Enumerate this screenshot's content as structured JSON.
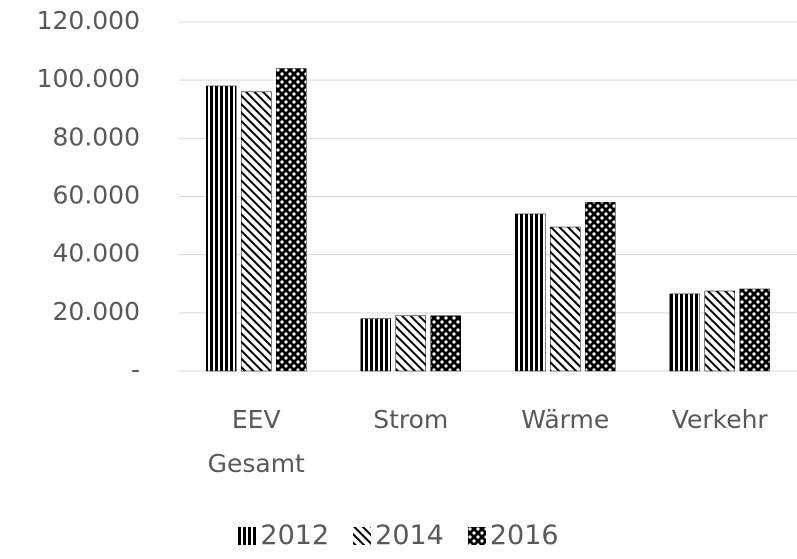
{
  "chart_data": {
    "type": "bar",
    "categories": [
      "EEV Gesamt",
      "Strom",
      "Wärme",
      "Verkehr"
    ],
    "series": [
      {
        "name": "2012",
        "color": "#000000",
        "pattern": "vertical",
        "values": [
          98000,
          18000,
          54000,
          26500
        ]
      },
      {
        "name": "2014",
        "color": "#000000",
        "pattern": "diagonal",
        "values": [
          96000,
          19000,
          49500,
          27500
        ]
      },
      {
        "name": "2016",
        "color": "#000000",
        "pattern": "checker",
        "values": [
          104000,
          19000,
          58000,
          28200
        ]
      }
    ],
    "ylim": [
      0,
      120000
    ],
    "yticks": [
      {
        "value": 0,
        "label": "-"
      },
      {
        "value": 20000,
        "label": "20.000"
      },
      {
        "value": 40000,
        "label": "40.000"
      },
      {
        "value": 60000,
        "label": "60.000"
      },
      {
        "value": 80000,
        "label": "80.000"
      },
      {
        "value": 100000,
        "label": "100.000"
      },
      {
        "value": 120000,
        "label": "120.000"
      }
    ],
    "grid": true,
    "legend": "bottom"
  }
}
